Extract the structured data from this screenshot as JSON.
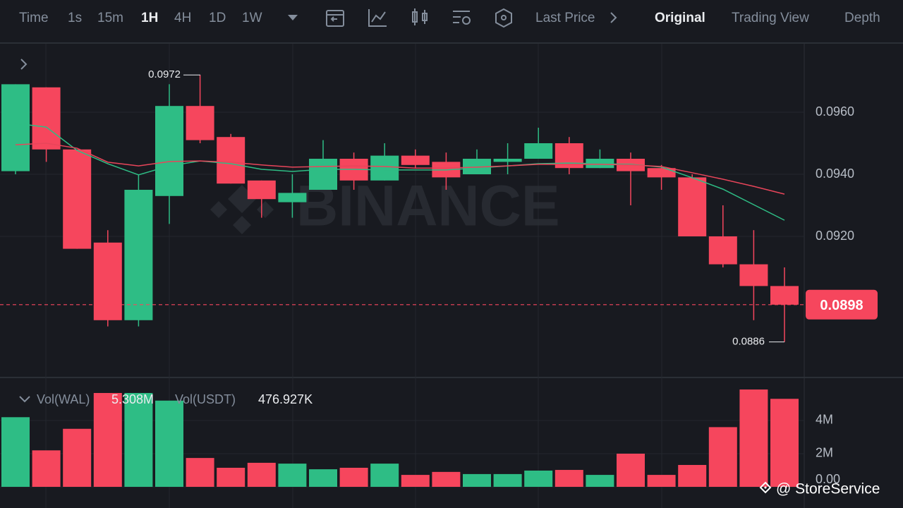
{
  "toolbar": {
    "intervals": [
      "Time",
      "1s",
      "15m",
      "1H",
      "4H",
      "1D",
      "1W"
    ],
    "active_interval": 3,
    "price_type": "Last Price",
    "views": [
      "Original",
      "Trading View",
      "Depth"
    ],
    "active_view": 0
  },
  "watermark": "BINANCE",
  "credit": "@ StoreService",
  "chart_data": {
    "type": "candlestick",
    "up_color": "#2ebd85",
    "down_color": "#f6465d",
    "candles": {
      "open": [
        0.0941,
        0.0968,
        0.0948,
        0.0918,
        0.0893,
        0.0933,
        0.0962,
        0.0952,
        0.0938,
        0.0931,
        0.0935,
        0.0945,
        0.0938,
        0.0946,
        0.0944,
        0.094,
        0.0944,
        0.0945,
        0.095,
        0.0942,
        0.0945,
        0.0942,
        0.0939,
        0.092,
        0.0911,
        0.0904
      ],
      "high": [
        0.0969,
        0.0968,
        0.0948,
        0.0922,
        0.094,
        0.0969,
        0.0972,
        0.0953,
        0.0938,
        0.094,
        0.0951,
        0.0947,
        0.095,
        0.0948,
        0.0947,
        0.0948,
        0.095,
        0.0955,
        0.0952,
        0.0948,
        0.0947,
        0.0943,
        0.094,
        0.093,
        0.0922,
        0.091
      ],
      "low": [
        0.094,
        0.0944,
        0.0916,
        0.0891,
        0.0891,
        0.0924,
        0.095,
        0.0937,
        0.0926,
        0.0926,
        0.0935,
        0.0935,
        0.0938,
        0.0942,
        0.0935,
        0.094,
        0.094,
        0.0945,
        0.094,
        0.0942,
        0.093,
        0.0935,
        0.092,
        0.091,
        0.0893,
        0.0886
      ],
      "close": [
        0.0969,
        0.0948,
        0.0916,
        0.0893,
        0.0935,
        0.0962,
        0.0951,
        0.0937,
        0.0932,
        0.0934,
        0.0945,
        0.0938,
        0.0946,
        0.0943,
        0.0939,
        0.0945,
        0.0945,
        0.095,
        0.0942,
        0.0945,
        0.0941,
        0.0939,
        0.092,
        0.0911,
        0.0904,
        0.0898
      ]
    },
    "moving_averages": [
      {
        "color": "#2ebd85",
        "values": [
          0.09564,
          0.09552,
          0.09477,
          0.09434,
          0.09398,
          0.09427,
          0.09443,
          0.09434,
          0.09416,
          0.09409,
          0.09416,
          0.09416,
          0.09414,
          0.09414,
          0.09414,
          0.0942,
          0.09427,
          0.09434,
          0.09436,
          0.09434,
          0.09432,
          0.09423,
          0.09389,
          0.09352,
          0.09302,
          0.09252
        ]
      },
      {
        "color": "#e8455a",
        "values": [
          0.09495,
          0.095,
          0.09484,
          0.09439,
          0.09427,
          0.09441,
          0.09443,
          0.09439,
          0.0943,
          0.09423,
          0.09425,
          0.09427,
          0.09425,
          0.0942,
          0.0942,
          0.09423,
          0.09427,
          0.09432,
          0.09432,
          0.09432,
          0.0943,
          0.09425,
          0.09405,
          0.09384,
          0.09361,
          0.09336
        ]
      }
    ],
    "ylim": [
      0.0875,
      0.09825
    ],
    "yticks": [
      {
        "value": 0.096,
        "label": "0.0960"
      },
      {
        "value": 0.094,
        "label": "0.0940"
      },
      {
        "value": 0.092,
        "label": "0.0920"
      }
    ],
    "high_label": {
      "value": 0.0972,
      "label": "0.0972"
    },
    "low_label": {
      "value": 0.0886,
      "label": "0.0886"
    },
    "last_price": {
      "value": 0.0898,
      "label": "0.0898"
    },
    "volume": {
      "name": "Vol(WAL)",
      "current": {
        "value": 5308000,
        "label": "5.308M"
      },
      "quote_name": "Vol(USDT)",
      "quote_current": {
        "value": 476927,
        "label": "476.927K"
      },
      "values": [
        4200000,
        2200000,
        3500000,
        5660000,
        5660000,
        5200000,
        1740000,
        1150000,
        1450000,
        1400000,
        1060000,
        1150000,
        1400000,
        720000,
        900000,
        770000,
        770000,
        980000,
        1020000,
        720000,
        2000000,
        720000,
        1320000,
        3600000,
        5870000,
        5308000
      ],
      "ylim": [
        0,
        6170000
      ],
      "yticks": [
        {
          "value": 4000000,
          "label": "4M"
        },
        {
          "value": 2000000,
          "label": "2M"
        },
        {
          "value": 0,
          "label": "0.00"
        }
      ]
    }
  }
}
